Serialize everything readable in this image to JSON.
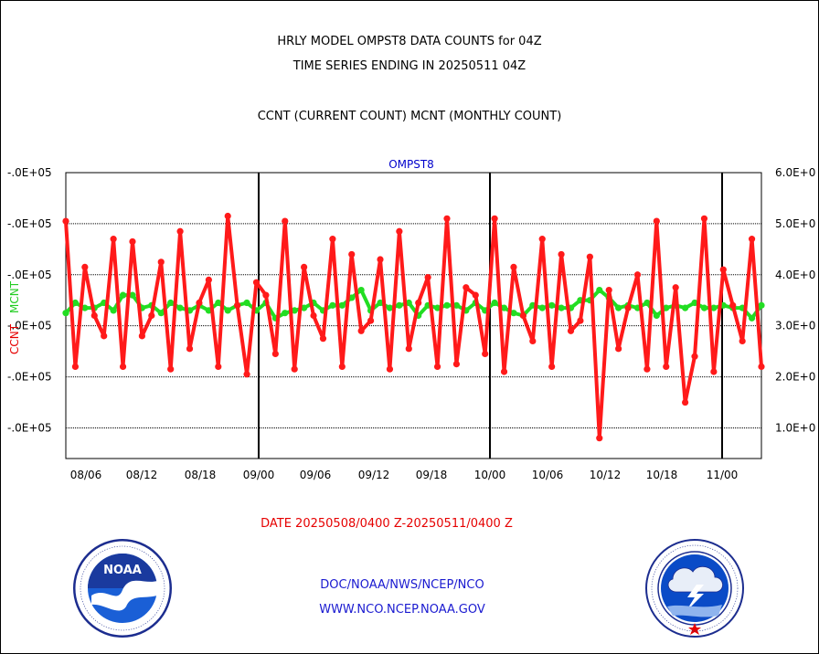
{
  "header": {
    "line1": "HRLY MODEL OMPST8 DATA COUNTS for 04Z",
    "line2": "TIME SERIES ENDING IN 20250511 04Z",
    "line3": "CCNT (CURRENT COUNT) MCNT (MONTHLY COUNT)"
  },
  "footer": {
    "date_range": "DATE 20250508/0400 Z-20250511/0400 Z",
    "org": "DOC/NOAA/NWS/NCEP/NCO",
    "url": "WWW.NCO.NCEP.NOAA.GOV"
  },
  "logos": {
    "left": {
      "icon": "noaa-logo",
      "text": "NOAA"
    },
    "right": {
      "icon": "nws-logo"
    }
  },
  "colors": {
    "ccnt": "#ff1a1a",
    "mcnt": "#22dd22",
    "axis": "#000000",
    "label": "#0000cc"
  },
  "chart_data": {
    "type": "line",
    "title": "OMPST8",
    "ylabel_left": "CCNT",
    "ylabel_right": "MCNT",
    "ylim": [
      0.4,
      6.0
    ],
    "y_unit_scale": "1E+05",
    "yticks_left": [
      "-.0E+05",
      "-.0E+05",
      "-.0E+05",
      "-.0E+05",
      "-.0E+05",
      "-.0E+05"
    ],
    "yticks_right": [
      "1.0E+0",
      "2.0E+0",
      "3.0E+0",
      "4.0E+0",
      "5.0E+0",
      "6.0E+0"
    ],
    "ytick_values": [
      1,
      2,
      3,
      4,
      5,
      6
    ],
    "grid_y": [
      1,
      2,
      3,
      4,
      5
    ],
    "xticks": [
      "08/06",
      "08/12",
      "08/18",
      "09/00",
      "09/06",
      "09/12",
      "09/18",
      "10/00",
      "10/06",
      "10/12",
      "10/18",
      "11/00"
    ],
    "x_day_boundaries": [
      "09/00",
      "10/00",
      "11/00"
    ],
    "grid": true,
    "series": [
      {
        "name": "CCNT",
        "values": [
          5.05,
          2.2,
          4.15,
          3.2,
          2.8,
          4.7,
          2.2,
          4.65,
          2.8,
          3.2,
          4.25,
          2.15,
          4.85,
          2.55,
          3.45,
          3.9,
          2.2,
          5.15,
          3.4,
          2.05,
          3.85,
          3.6,
          2.45,
          5.05,
          2.15,
          4.15,
          3.2,
          2.75,
          4.7,
          2.2,
          4.4,
          2.9,
          3.1,
          4.3,
          2.15,
          4.85,
          2.55,
          3.45,
          3.95,
          2.2,
          5.1,
          2.25,
          3.75,
          3.6,
          2.45,
          5.1,
          2.1,
          4.15,
          3.2,
          2.7,
          4.7,
          2.2,
          4.4,
          2.9,
          3.1,
          4.35,
          0.8,
          3.7,
          2.55,
          3.35,
          4.0,
          2.15,
          5.05,
          2.2,
          3.75,
          1.5,
          2.4,
          5.1,
          2.1,
          4.1,
          3.4,
          2.7,
          4.7,
          2.2
        ]
      },
      {
        "name": "MCNT",
        "values": [
          3.25,
          3.45,
          3.35,
          3.35,
          3.45,
          3.3,
          3.6,
          3.6,
          3.35,
          3.4,
          3.25,
          3.45,
          3.35,
          3.3,
          3.4,
          3.3,
          3.45,
          3.3,
          3.4,
          3.45,
          3.3,
          3.45,
          3.15,
          3.25,
          3.3,
          3.35,
          3.45,
          3.3,
          3.4,
          3.4,
          3.55,
          3.7,
          3.3,
          3.45,
          3.35,
          3.4,
          3.45,
          3.2,
          3.4,
          3.35,
          3.4,
          3.4,
          3.3,
          3.45,
          3.3,
          3.45,
          3.35,
          3.25,
          3.2,
          3.4,
          3.35,
          3.4,
          3.35,
          3.35,
          3.5,
          3.5,
          3.7,
          3.55,
          3.35,
          3.4,
          3.35,
          3.45,
          3.2,
          3.35,
          3.4,
          3.35,
          3.45,
          3.35,
          3.35,
          3.4,
          3.35,
          3.35,
          3.15,
          3.4
        ]
      }
    ]
  }
}
